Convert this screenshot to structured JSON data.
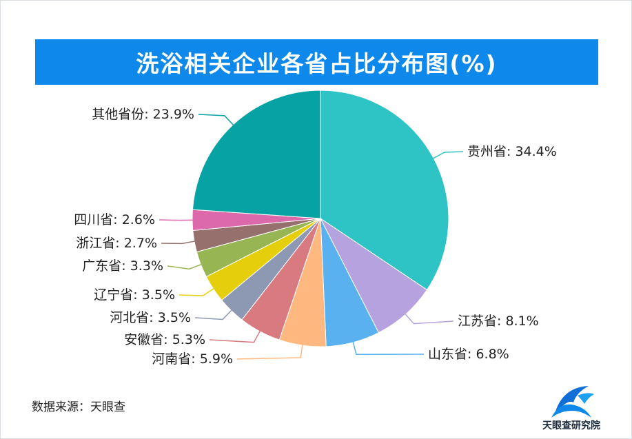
{
  "title": "洗浴相关企业各省占比分布图(%)",
  "source": "数据来源：天眼查",
  "logo_text": "天眼查研究院",
  "chart_data": {
    "type": "pie",
    "title": "洗浴相关企业各省占比分布图(%)",
    "unit": "%",
    "slices": [
      {
        "label": "贵州省",
        "value": 34.4,
        "display": "贵州省: 34.4%",
        "color": "#2ec4c6"
      },
      {
        "label": "江苏省",
        "value": 8.1,
        "display": "江苏省: 8.1%",
        "color": "#b6a2de"
      },
      {
        "label": "山东省",
        "value": 6.8,
        "display": "山东省: 6.8%",
        "color": "#5ab1ef"
      },
      {
        "label": "河南省",
        "value": 5.9,
        "display": "河南省: 5.9%",
        "color": "#ffb980"
      },
      {
        "label": "安徽省",
        "value": 5.3,
        "display": "安徽省: 5.3%",
        "color": "#d87a80"
      },
      {
        "label": "河北省",
        "value": 3.5,
        "display": "河北省: 3.5%",
        "color": "#8d98b3"
      },
      {
        "label": "辽宁省",
        "value": 3.5,
        "display": "辽宁省: 3.5%",
        "color": "#e5cf0d"
      },
      {
        "label": "广东省",
        "value": 3.3,
        "display": "广东省: 3.3%",
        "color": "#97b552"
      },
      {
        "label": "浙江省",
        "value": 2.7,
        "display": "浙江省: 2.7%",
        "color": "#95706d"
      },
      {
        "label": "四川省",
        "value": 2.6,
        "display": "四川省: 2.6%",
        "color": "#dc69aa"
      },
      {
        "label": "其他省份",
        "value": 23.9,
        "display": "其他省份: 23.9%",
        "color": "#07a2a4"
      }
    ]
  }
}
